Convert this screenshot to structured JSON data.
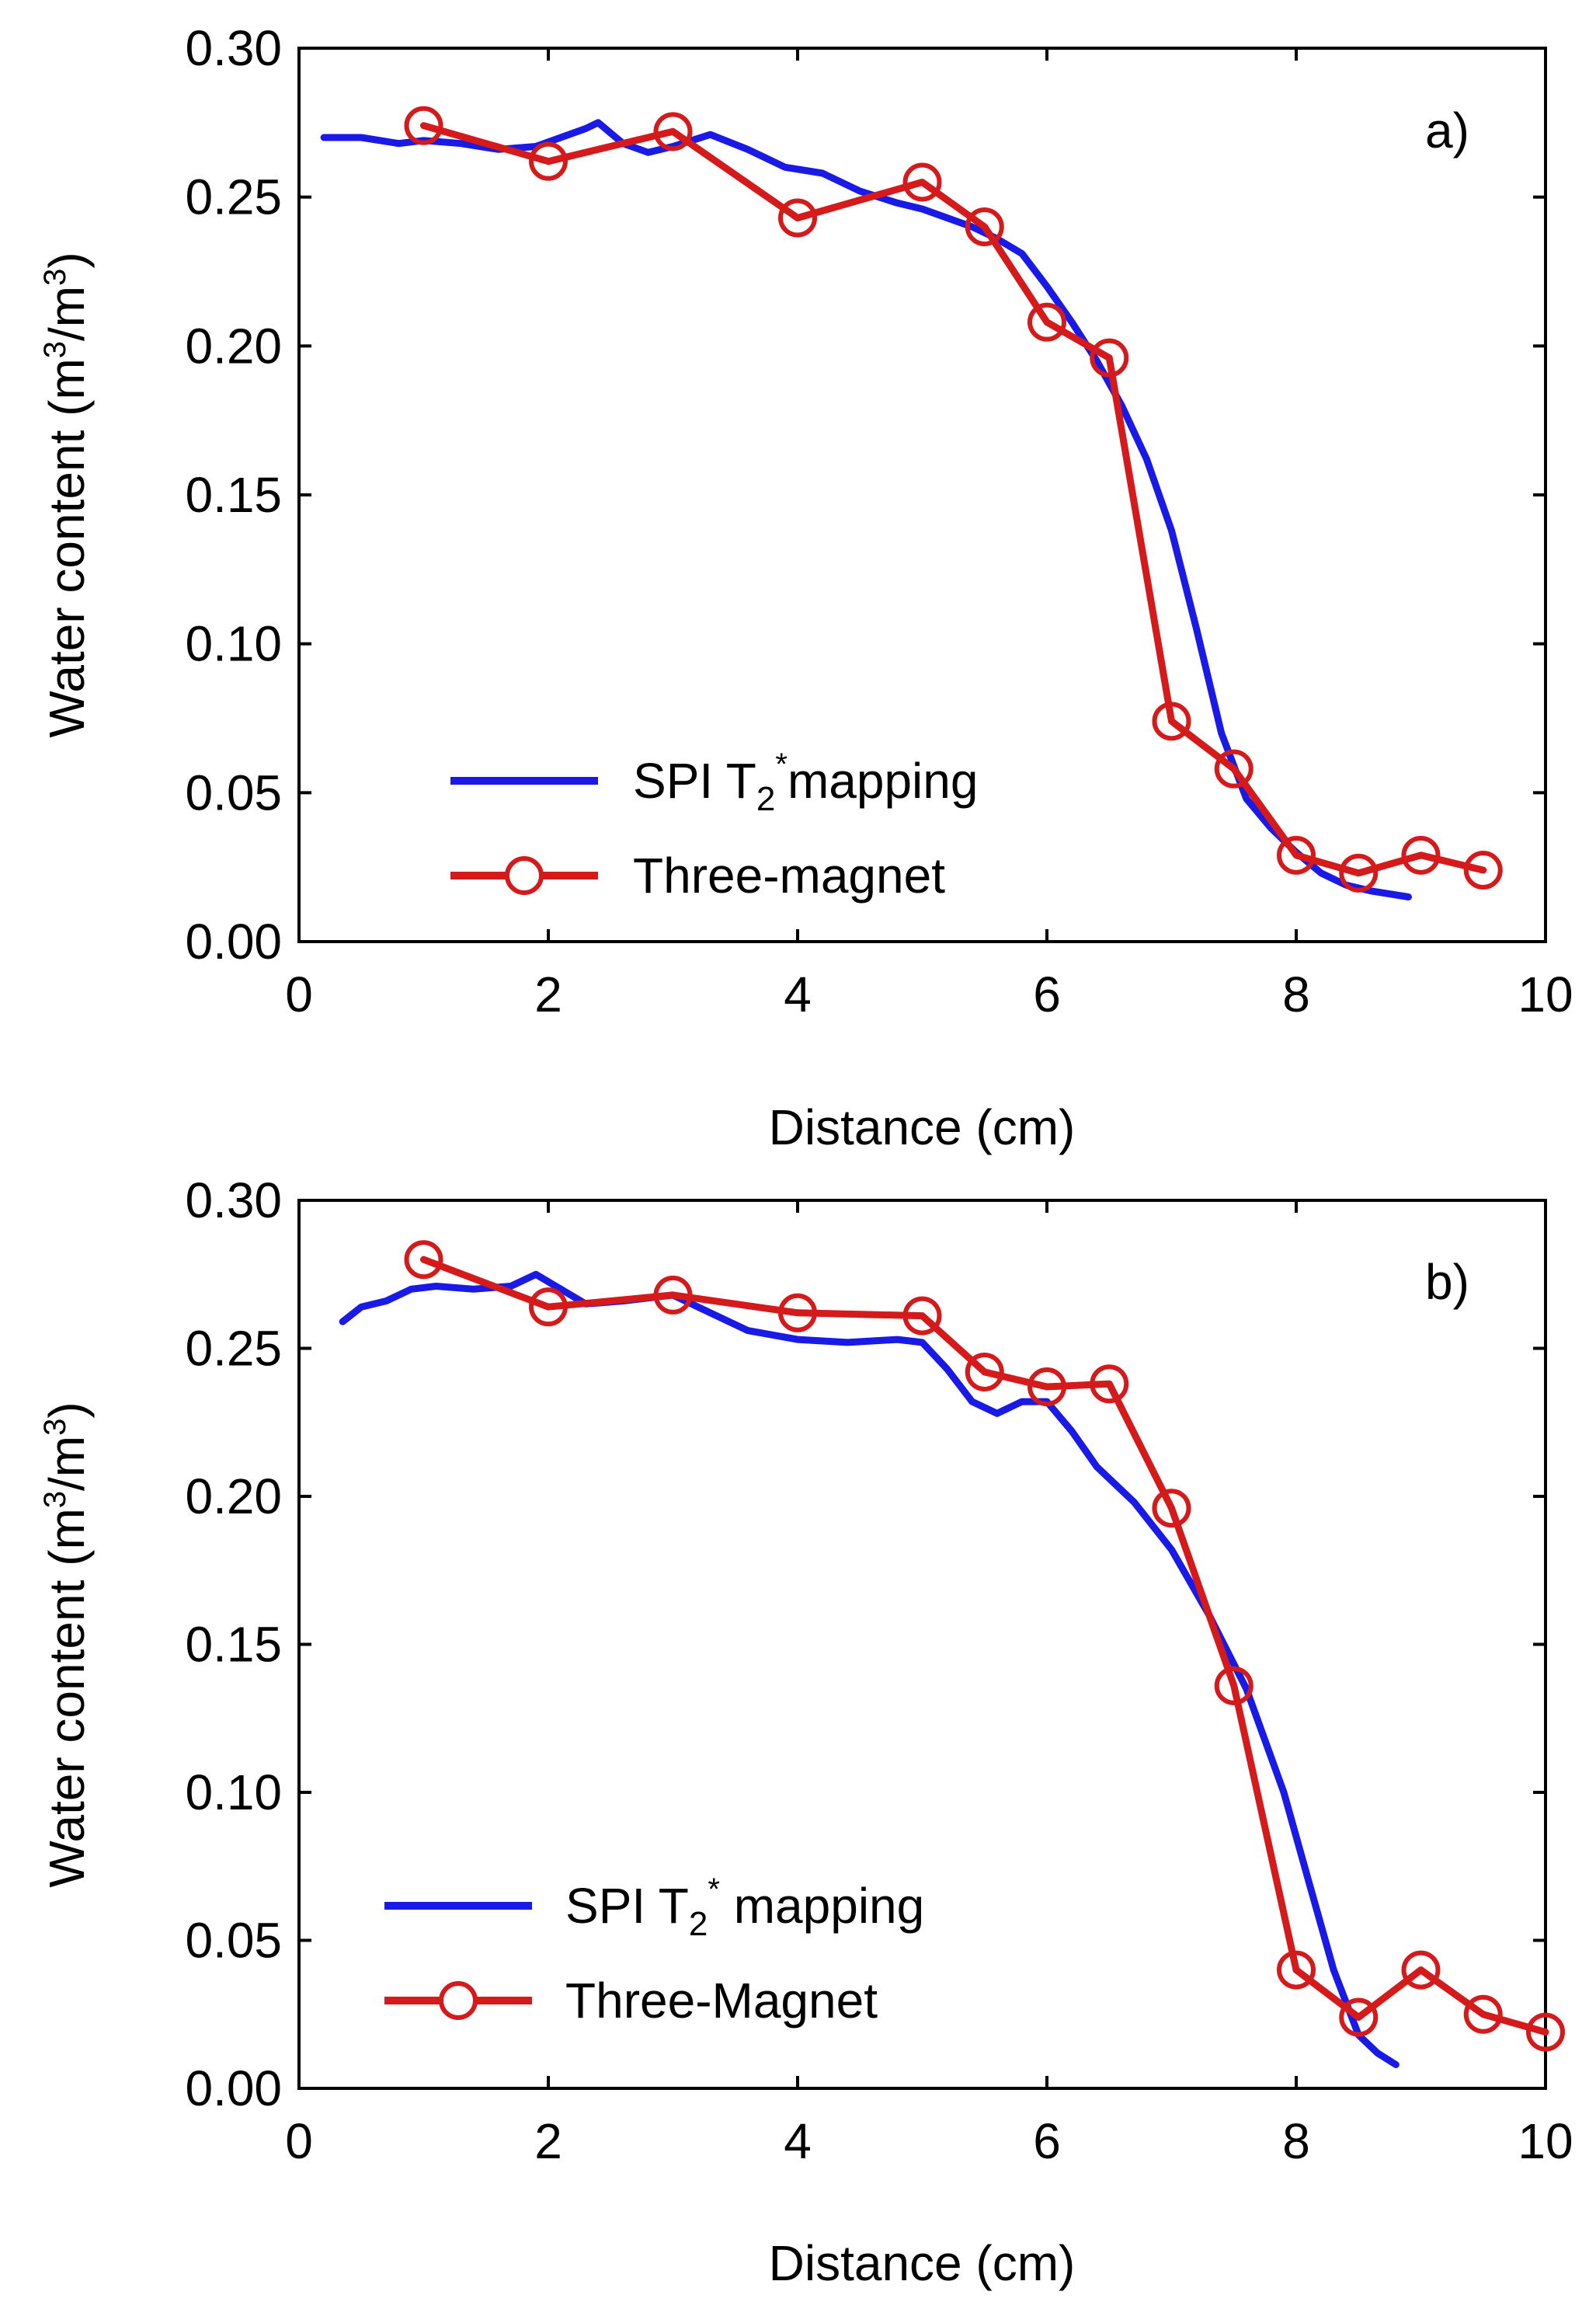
{
  "chart_data": [
    {
      "type": "line",
      "panel_label": "a)",
      "xlabel": "Distance (cm)",
      "ylabel": {
        "prefix": "Water content (m",
        "sup1": "3",
        "mid": "/m",
        "sup2": "3",
        "suffix": ")"
      },
      "xlim": [
        0,
        10
      ],
      "ylim": [
        0,
        0.3
      ],
      "xticks": [
        "0",
        "2",
        "4",
        "6",
        "8",
        "10"
      ],
      "yticks": [
        "0.00",
        "0.05",
        "0.10",
        "0.15",
        "0.20",
        "0.25",
        "0.30"
      ],
      "legend_position": "bottom-left",
      "series": [
        {
          "name": "SPI T2*mapping",
          "legend": {
            "main": "SPI T",
            "sub": "2",
            "sup": "*",
            "rest": "mapping"
          },
          "color": "#1a1ae6",
          "marker": "none",
          "x": [
            0.2,
            0.5,
            0.8,
            1.0,
            1.3,
            1.6,
            1.9,
            2.1,
            2.3,
            2.4,
            2.6,
            2.8,
            3.0,
            3.3,
            3.6,
            3.9,
            4.2,
            4.5,
            4.8,
            5.0,
            5.2,
            5.4,
            5.6,
            5.8,
            6.0,
            6.2,
            6.4,
            6.6,
            6.8,
            7.0,
            7.2,
            7.4,
            7.6,
            7.8,
            8.0,
            8.2,
            8.4,
            8.6,
            8.9
          ],
          "y": [
            0.27,
            0.27,
            0.268,
            0.269,
            0.268,
            0.266,
            0.267,
            0.27,
            0.273,
            0.275,
            0.268,
            0.265,
            0.267,
            0.271,
            0.266,
            0.26,
            0.258,
            0.252,
            0.248,
            0.246,
            0.243,
            0.24,
            0.236,
            0.231,
            0.22,
            0.208,
            0.195,
            0.18,
            0.162,
            0.138,
            0.105,
            0.07,
            0.048,
            0.038,
            0.03,
            0.023,
            0.019,
            0.017,
            0.015
          ]
        },
        {
          "name": "Three-magnet",
          "legend": {
            "main": "Three-magnet",
            "sub": "",
            "sup": "",
            "rest": ""
          },
          "color": "#d41a1a",
          "marker": "circle",
          "x": [
            1.0,
            2.0,
            3.0,
            4.0,
            5.0,
            5.5,
            6.0,
            6.5,
            7.0,
            7.5,
            8.0,
            8.5,
            9.0,
            9.5
          ],
          "y": [
            0.274,
            0.262,
            0.272,
            0.243,
            0.255,
            0.24,
            0.208,
            0.196,
            0.074,
            0.058,
            0.029,
            0.023,
            0.029,
            0.024
          ]
        }
      ]
    },
    {
      "type": "line",
      "panel_label": "b)",
      "xlabel": "Distance (cm)",
      "ylabel": {
        "prefix": "Water content (m",
        "sup1": "3",
        "mid": "/m",
        "sup2": "3",
        "suffix": ")"
      },
      "xlim": [
        0,
        10
      ],
      "ylim": [
        0,
        0.3
      ],
      "xticks": [
        "0",
        "2",
        "4",
        "6",
        "8",
        "10"
      ],
      "yticks": [
        "0.00",
        "0.05",
        "0.10",
        "0.15",
        "0.20",
        "0.25",
        "0.30"
      ],
      "legend_position": "bottom-left",
      "series": [
        {
          "name": "SPI T2* mapping",
          "legend": {
            "main": "SPI T",
            "sub": "2",
            "sup": "*",
            "rest": " mapping"
          },
          "color": "#1a1ae6",
          "marker": "none",
          "x": [
            0.35,
            0.5,
            0.7,
            0.9,
            1.1,
            1.4,
            1.7,
            1.9,
            2.1,
            2.3,
            2.6,
            3.0,
            3.3,
            3.6,
            4.0,
            4.4,
            4.8,
            5.0,
            5.2,
            5.4,
            5.6,
            5.8,
            6.0,
            6.2,
            6.4,
            6.7,
            7.0,
            7.3,
            7.6,
            7.9,
            8.1,
            8.3,
            8.5,
            8.65,
            8.8
          ],
          "y": [
            0.259,
            0.264,
            0.266,
            0.27,
            0.271,
            0.27,
            0.271,
            0.275,
            0.27,
            0.265,
            0.266,
            0.268,
            0.262,
            0.256,
            0.253,
            0.252,
            0.253,
            0.252,
            0.243,
            0.232,
            0.228,
            0.232,
            0.232,
            0.222,
            0.21,
            0.198,
            0.182,
            0.16,
            0.135,
            0.1,
            0.07,
            0.04,
            0.018,
            0.012,
            0.008
          ]
        },
        {
          "name": "Three-Magnet",
          "legend": {
            "main": "Three-Magnet",
            "sub": "",
            "sup": "",
            "rest": ""
          },
          "color": "#d41a1a",
          "marker": "circle",
          "x": [
            1.0,
            2.0,
            3.0,
            4.0,
            5.0,
            5.5,
            6.0,
            6.5,
            7.0,
            7.5,
            8.0,
            8.5,
            9.0,
            9.5,
            10.0
          ],
          "y": [
            0.28,
            0.264,
            0.268,
            0.262,
            0.261,
            0.242,
            0.237,
            0.238,
            0.196,
            0.136,
            0.04,
            0.024,
            0.04,
            0.025,
            0.019
          ]
        }
      ]
    }
  ]
}
